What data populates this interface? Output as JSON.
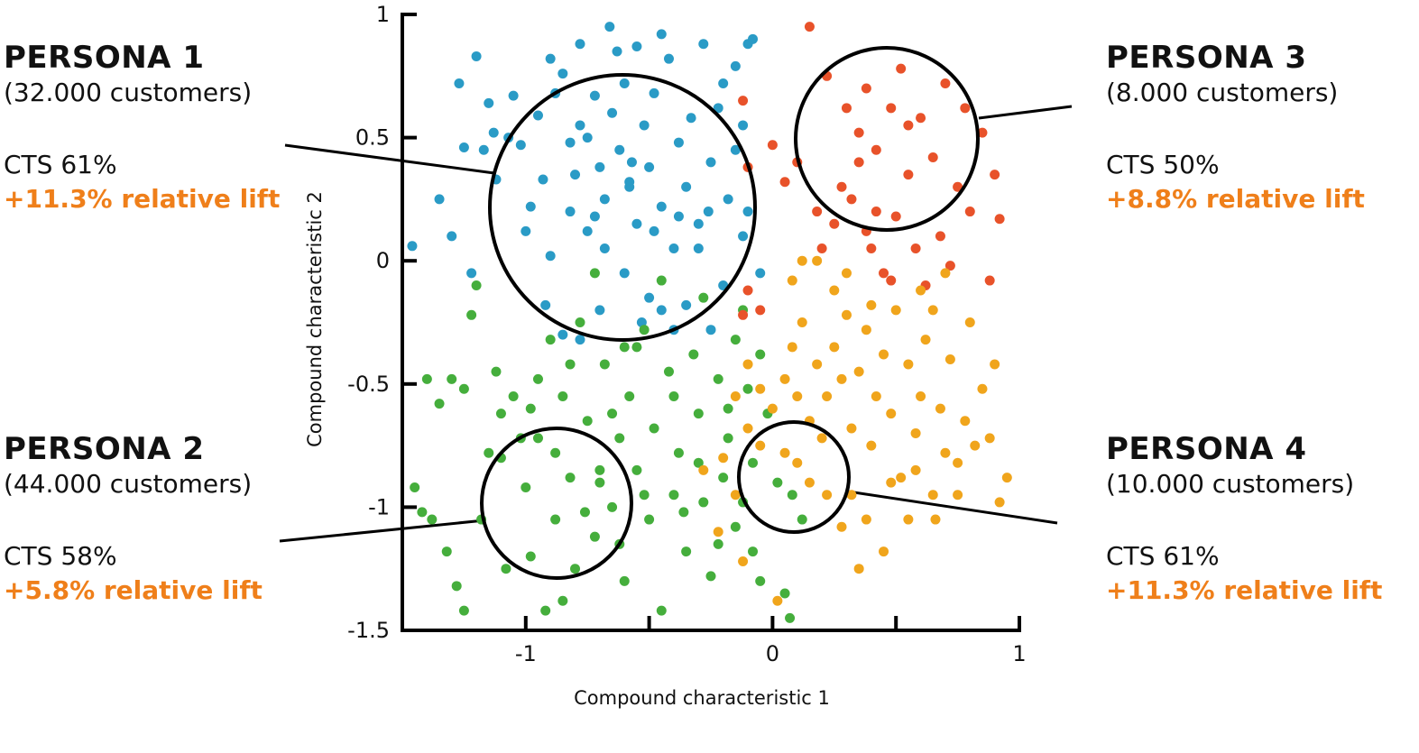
{
  "personas": [
    {
      "title": "PERSONA 1",
      "count": "(32.000 customers)",
      "cts": "CTS 61%",
      "lift": "+11.3% relative lift"
    },
    {
      "title": "PERSONA 2",
      "count": "(44.000 customers)",
      "cts": "CTS 58%",
      "lift": "+5.8% relative lift"
    },
    {
      "title": "PERSONA 3",
      "count": "(8.000 customers)",
      "cts": "CTS 50%",
      "lift": "+8.8% relative lift"
    },
    {
      "title": "PERSONA 4",
      "count": "(10.000 customers)",
      "cts": "CTS 61%",
      "lift": "+11.3% relative lift"
    }
  ],
  "colors": {
    "lift": "#ef7f1a",
    "blue": "#2a9bc6",
    "green": "#45ae3c",
    "red": "#e8522a",
    "yellow": "#f0a51c"
  },
  "chart_data": {
    "type": "scatter",
    "title": "",
    "xlabel": "Compound characteristic 1",
    "ylabel": "Compound characteristic 2",
    "xlim": [
      -1.5,
      1
    ],
    "ylim": [
      -1.5,
      1
    ],
    "xticks": [
      -1,
      0,
      1
    ],
    "xtick_labels": [
      "-1",
      "0",
      "1"
    ],
    "yticks": [
      -1.5,
      -1,
      -0.5,
      0,
      0.5,
      1
    ],
    "ytick_labels": [
      "-1.5",
      "-1",
      "-0.5",
      "0",
      "0.5",
      "1"
    ],
    "grid": false,
    "series": [
      {
        "color": "#2a9bc6",
        "points": [
          [
            -1.46,
            0.06
          ],
          [
            -1.35,
            0.25
          ],
          [
            -1.27,
            0.72
          ],
          [
            -1.25,
            0.46
          ],
          [
            -1.2,
            0.83
          ],
          [
            -1.15,
            0.64
          ],
          [
            -1.13,
            0.52
          ],
          [
            -1.12,
            0.33
          ],
          [
            -1.05,
            0.67
          ],
          [
            -1.02,
            0.47
          ],
          [
            -0.98,
            0.22
          ],
          [
            -0.95,
            0.59
          ],
          [
            -0.9,
            0.02
          ],
          [
            -0.85,
            0.76
          ],
          [
            -0.82,
            0.48
          ],
          [
            -0.8,
            0.35
          ],
          [
            -0.78,
            0.55
          ],
          [
            -0.75,
            0.12
          ],
          [
            -0.72,
            0.67
          ],
          [
            -0.7,
            0.38
          ],
          [
            -0.68,
            0.25
          ],
          [
            -0.65,
            0.6
          ],
          [
            -0.62,
            0.45
          ],
          [
            -0.6,
            0.72
          ],
          [
            -0.58,
            0.3
          ],
          [
            -0.55,
            0.15
          ],
          [
            -0.52,
            0.55
          ],
          [
            -0.5,
            0.38
          ],
          [
            -0.48,
            0.68
          ],
          [
            -0.45,
            0.22
          ],
          [
            -0.42,
            0.82
          ],
          [
            -0.4,
            0.05
          ],
          [
            -0.38,
            0.48
          ],
          [
            -0.35,
            0.3
          ],
          [
            -0.33,
            0.58
          ],
          [
            -0.3,
            0.15
          ],
          [
            -0.28,
            0.88
          ],
          [
            -0.25,
            0.4
          ],
          [
            -0.22,
            0.62
          ],
          [
            -0.2,
            0.72
          ],
          [
            -0.18,
            0.25
          ],
          [
            -0.15,
            0.79
          ],
          [
            -0.12,
            0.1
          ],
          [
            -0.1,
            0.88
          ],
          [
            -0.08,
            0.9
          ],
          [
            -0.05,
            -0.05
          ],
          [
            -0.6,
            -0.05
          ],
          [
            -0.7,
            -0.2
          ],
          [
            -0.5,
            -0.15
          ],
          [
            -0.45,
            -0.2
          ],
          [
            -0.35,
            -0.18
          ],
          [
            -0.92,
            -0.18
          ],
          [
            -0.85,
            -0.3
          ],
          [
            -0.78,
            -0.32
          ],
          [
            -1.3,
            0.1
          ],
          [
            -1.17,
            0.45
          ],
          [
            -1.07,
            0.5
          ],
          [
            -0.88,
            0.68
          ],
          [
            -0.66,
            0.95
          ],
          [
            -0.63,
            0.85
          ],
          [
            -0.55,
            0.87
          ],
          [
            -0.45,
            0.92
          ],
          [
            -0.75,
            0.5
          ],
          [
            -0.68,
            0.05
          ],
          [
            -0.58,
            0.32
          ],
          [
            -0.53,
            -0.25
          ],
          [
            -0.4,
            -0.28
          ],
          [
            -0.25,
            -0.28
          ],
          [
            -0.2,
            -0.1
          ],
          [
            -0.3,
            0.05
          ],
          [
            -0.15,
            0.45
          ],
          [
            -0.1,
            0.2
          ],
          [
            -1.0,
            0.12
          ],
          [
            -0.93,
            0.33
          ],
          [
            -0.82,
            0.2
          ],
          [
            -0.72,
            0.18
          ],
          [
            -0.48,
            0.12
          ],
          [
            -0.38,
            0.18
          ],
          [
            -0.26,
            0.2
          ],
          [
            -0.12,
            0.55
          ],
          [
            -1.22,
            -0.05
          ],
          [
            -0.9,
            0.82
          ],
          [
            -0.78,
            0.88
          ],
          [
            -0.57,
            0.4
          ]
        ]
      },
      {
        "color": "#45ae3c",
        "points": [
          [
            -1.4,
            -0.48
          ],
          [
            -1.35,
            -0.58
          ],
          [
            -1.3,
            -0.48
          ],
          [
            -1.25,
            -0.52
          ],
          [
            -1.22,
            -0.22
          ],
          [
            -1.2,
            -0.1
          ],
          [
            -1.15,
            -0.78
          ],
          [
            -1.12,
            -0.45
          ],
          [
            -1.1,
            -0.62
          ],
          [
            -1.05,
            -0.55
          ],
          [
            -1.0,
            -0.92
          ],
          [
            -0.98,
            -1.2
          ],
          [
            -0.95,
            -0.72
          ],
          [
            -0.9,
            -0.32
          ],
          [
            -0.88,
            -1.05
          ],
          [
            -0.85,
            -0.55
          ],
          [
            -0.82,
            -0.88
          ],
          [
            -0.8,
            -1.25
          ],
          [
            -0.78,
            -0.25
          ],
          [
            -0.75,
            -0.65
          ],
          [
            -0.72,
            -1.12
          ],
          [
            -0.7,
            -0.9
          ],
          [
            -0.68,
            -0.42
          ],
          [
            -0.65,
            -1.0
          ],
          [
            -0.62,
            -0.72
          ],
          [
            -0.6,
            -1.3
          ],
          [
            -0.58,
            -0.55
          ],
          [
            -0.55,
            -0.85
          ],
          [
            -0.52,
            -0.28
          ],
          [
            -0.5,
            -1.05
          ],
          [
            -0.48,
            -0.68
          ],
          [
            -0.45,
            -1.42
          ],
          [
            -0.42,
            -0.45
          ],
          [
            -0.4,
            -0.95
          ],
          [
            -0.38,
            -0.78
          ],
          [
            -0.35,
            -1.18
          ],
          [
            -0.32,
            -0.38
          ],
          [
            -0.3,
            -0.62
          ],
          [
            -0.28,
            -0.98
          ],
          [
            -0.25,
            -1.28
          ],
          [
            -0.22,
            -0.48
          ],
          [
            -0.2,
            -0.88
          ],
          [
            -0.18,
            -0.72
          ],
          [
            -0.15,
            -1.08
          ],
          [
            -0.12,
            -0.2
          ],
          [
            -0.1,
            -0.52
          ],
          [
            -0.08,
            -0.82
          ],
          [
            -0.05,
            -1.3
          ],
          [
            -0.02,
            -0.62
          ],
          [
            0.02,
            -0.9
          ],
          [
            0.05,
            -1.35
          ],
          [
            0.08,
            -0.95
          ],
          [
            0.12,
            -1.05
          ],
          [
            -1.45,
            -0.92
          ],
          [
            -1.42,
            -1.02
          ],
          [
            -1.38,
            -1.05
          ],
          [
            -1.32,
            -1.18
          ],
          [
            -1.28,
            -1.32
          ],
          [
            -1.25,
            -1.42
          ],
          [
            -1.18,
            -1.05
          ],
          [
            -1.08,
            -1.25
          ],
          [
            -0.92,
            -1.42
          ],
          [
            -0.85,
            -1.38
          ],
          [
            -1.02,
            -0.72
          ],
          [
            -0.95,
            -0.48
          ],
          [
            -0.82,
            -0.42
          ],
          [
            -0.65,
            -0.62
          ],
          [
            -0.55,
            -0.35
          ],
          [
            -0.4,
            -0.55
          ],
          [
            -0.3,
            -0.82
          ],
          [
            -0.15,
            -0.32
          ],
          [
            -0.05,
            -0.38
          ],
          [
            -0.72,
            -0.05
          ],
          [
            -0.6,
            -0.35
          ],
          [
            -0.45,
            -0.08
          ],
          [
            -0.28,
            -0.15
          ],
          [
            -0.18,
            -0.6
          ],
          [
            -0.08,
            -1.18
          ],
          [
            0.07,
            -1.45
          ],
          [
            -0.88,
            -0.78
          ],
          [
            -0.76,
            -1.02
          ],
          [
            -0.62,
            -1.15
          ],
          [
            -0.98,
            -0.6
          ],
          [
            -1.1,
            -0.8
          ],
          [
            -0.7,
            -0.85
          ],
          [
            -0.52,
            -0.95
          ],
          [
            -0.36,
            -1.02
          ],
          [
            -0.22,
            -1.15
          ],
          [
            -0.12,
            -0.98
          ]
        ]
      },
      {
        "color": "#e8522a",
        "points": [
          [
            0.15,
            0.95
          ],
          [
            0.22,
            0.75
          ],
          [
            0.3,
            0.62
          ],
          [
            0.35,
            0.52
          ],
          [
            0.38,
            0.7
          ],
          [
            0.42,
            0.45
          ],
          [
            0.48,
            0.62
          ],
          [
            0.52,
            0.78
          ],
          [
            0.55,
            0.35
          ],
          [
            0.6,
            0.58
          ],
          [
            0.65,
            0.42
          ],
          [
            0.7,
            0.72
          ],
          [
            0.75,
            0.3
          ],
          [
            0.8,
            0.2
          ],
          [
            0.85,
            0.52
          ],
          [
            0.9,
            0.35
          ],
          [
            0.92,
            0.17
          ],
          [
            0.28,
            0.3
          ],
          [
            0.25,
            0.15
          ],
          [
            0.32,
            0.25
          ],
          [
            0.4,
            0.05
          ],
          [
            0.45,
            -0.05
          ],
          [
            0.5,
            0.18
          ],
          [
            0.58,
            0.05
          ],
          [
            0.62,
            -0.1
          ],
          [
            0.68,
            0.1
          ],
          [
            0.05,
            0.32
          ],
          [
            0.1,
            0.4
          ],
          [
            0.0,
            0.47
          ],
          [
            -0.12,
            0.65
          ],
          [
            -0.1,
            0.38
          ],
          [
            0.18,
            0.2
          ],
          [
            0.2,
            0.05
          ],
          [
            0.35,
            0.4
          ],
          [
            0.55,
            0.55
          ],
          [
            0.72,
            -0.02
          ],
          [
            0.78,
            0.62
          ],
          [
            0.88,
            -0.08
          ],
          [
            0.42,
            0.2
          ],
          [
            0.48,
            -0.08
          ],
          [
            -0.05,
            -0.2
          ],
          [
            -0.1,
            -0.12
          ],
          [
            -0.12,
            -0.22
          ],
          [
            0.38,
            0.12
          ]
        ]
      },
      {
        "color": "#f0a51c",
        "points": [
          [
            -0.15,
            -0.55
          ],
          [
            -0.1,
            -0.42
          ],
          [
            -0.05,
            -0.52
          ],
          [
            0.0,
            -0.6
          ],
          [
            0.05,
            -0.48
          ],
          [
            0.08,
            -0.35
          ],
          [
            0.1,
            -0.55
          ],
          [
            0.12,
            -0.25
          ],
          [
            0.15,
            -0.65
          ],
          [
            0.18,
            -0.42
          ],
          [
            0.2,
            -0.72
          ],
          [
            0.22,
            -0.55
          ],
          [
            0.25,
            -0.35
          ],
          [
            0.28,
            -0.48
          ],
          [
            0.3,
            -0.22
          ],
          [
            0.32,
            -0.68
          ],
          [
            0.35,
            -0.45
          ],
          [
            0.38,
            -0.28
          ],
          [
            0.4,
            -0.75
          ],
          [
            0.42,
            -0.55
          ],
          [
            0.45,
            -0.38
          ],
          [
            0.48,
            -0.62
          ],
          [
            0.5,
            -0.2
          ],
          [
            0.52,
            -0.88
          ],
          [
            0.55,
            -0.42
          ],
          [
            0.58,
            -0.7
          ],
          [
            0.6,
            -0.55
          ],
          [
            0.62,
            -0.32
          ],
          [
            0.65,
            -0.95
          ],
          [
            0.68,
            -0.6
          ],
          [
            0.7,
            -0.78
          ],
          [
            0.72,
            -0.4
          ],
          [
            0.75,
            -0.82
          ],
          [
            0.78,
            -0.65
          ],
          [
            0.8,
            -0.25
          ],
          [
            0.85,
            -0.52
          ],
          [
            0.88,
            -0.72
          ],
          [
            0.9,
            -0.42
          ],
          [
            0.92,
            -0.98
          ],
          [
            0.95,
            -0.88
          ],
          [
            0.55,
            -1.05
          ],
          [
            0.45,
            -1.18
          ],
          [
            0.35,
            -1.25
          ],
          [
            0.28,
            -1.08
          ],
          [
            0.22,
            -0.95
          ],
          [
            0.15,
            -0.9
          ],
          [
            0.1,
            -0.82
          ],
          [
            0.05,
            -0.78
          ],
          [
            -0.05,
            -0.75
          ],
          [
            -0.1,
            -0.68
          ],
          [
            -0.2,
            -0.8
          ],
          [
            -0.28,
            -0.85
          ],
          [
            -0.15,
            -0.95
          ],
          [
            -0.22,
            -1.1
          ],
          [
            -0.12,
            -1.22
          ],
          [
            0.02,
            -1.38
          ],
          [
            0.25,
            -0.12
          ],
          [
            0.18,
            0.0
          ],
          [
            0.12,
            0.0
          ],
          [
            0.3,
            -0.05
          ],
          [
            0.08,
            -0.08
          ],
          [
            0.6,
            -0.12
          ],
          [
            0.65,
            -0.2
          ],
          [
            0.7,
            -0.05
          ],
          [
            0.4,
            -0.18
          ],
          [
            0.48,
            -0.9
          ],
          [
            0.58,
            -0.85
          ],
          [
            0.66,
            -1.05
          ],
          [
            0.75,
            -0.95
          ],
          [
            0.82,
            -0.75
          ],
          [
            0.32,
            -0.95
          ],
          [
            0.38,
            -1.05
          ]
        ]
      }
    ]
  }
}
